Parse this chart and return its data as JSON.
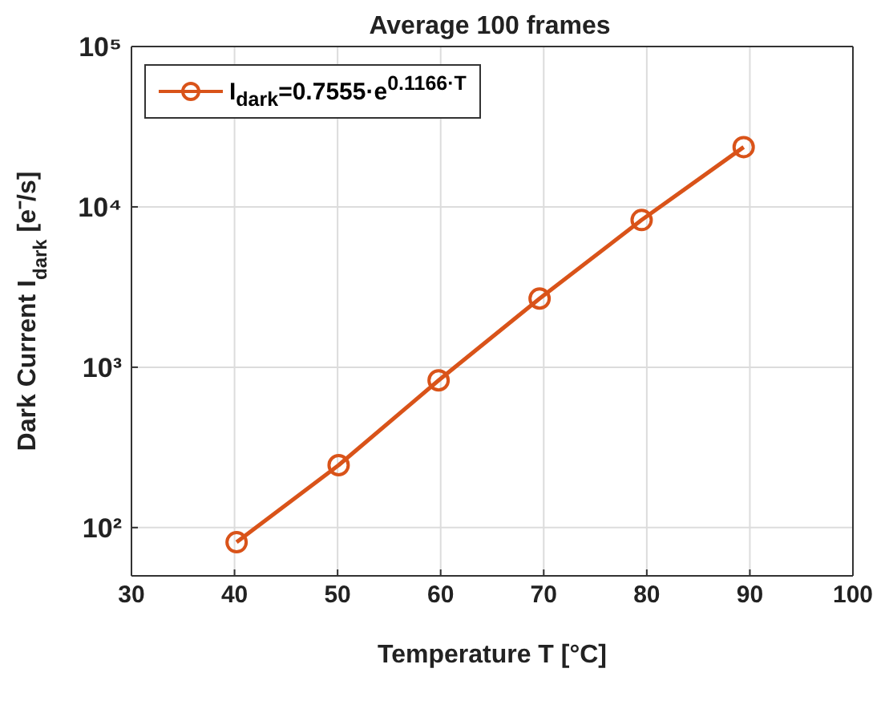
{
  "chart_data": {
    "type": "line",
    "title": "Average 100 frames",
    "xlabel": "Temperature T [°C]",
    "ylabel": "Dark Current I$_{dark}$ [e⁻/s]",
    "x": [
      40.2,
      50.1,
      59.8,
      69.6,
      79.5,
      89.4
    ],
    "series": [
      {
        "name": "I$_{dark}$=0.7555·e$^{0.1166·T}$",
        "color": "#d95319",
        "values": [
          81,
          245,
          828,
          2680,
          8280,
          23600
        ]
      }
    ],
    "xlim": [
      30,
      100
    ],
    "xticks": [
      30,
      40,
      50,
      60,
      70,
      80,
      90,
      100
    ],
    "ylim": [
      50,
      100000
    ],
    "yticks": [
      {
        "value": 100,
        "label": "10²"
      },
      {
        "value": 1000,
        "label": "10³"
      },
      {
        "value": 10000,
        "label": "10⁴"
      },
      {
        "value": 100000,
        "label": "10⁵"
      }
    ],
    "log": "y",
    "grid": true,
    "legend": "top left",
    "marker": "circle",
    "line_style": "solid"
  }
}
